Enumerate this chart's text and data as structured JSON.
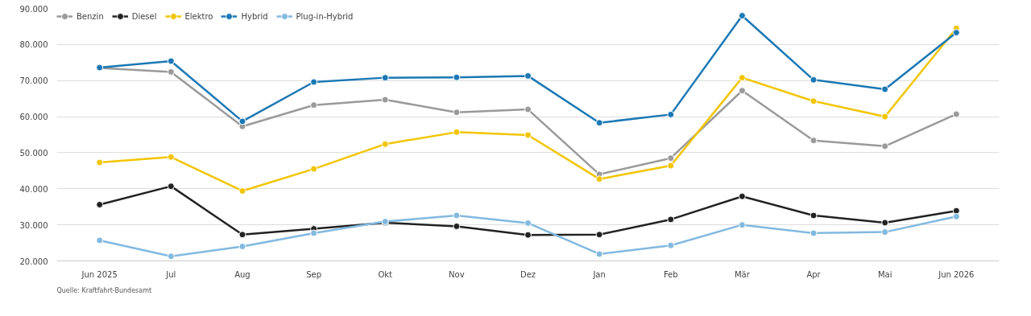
{
  "chart_data": {
    "type": "line",
    "categories": [
      "Jun 2025",
      "Jul",
      "Aug",
      "Sep",
      "Okt",
      "Nov",
      "Dez",
      "Jan",
      "Feb",
      "Mär",
      "Apr",
      "Mai",
      "Jun 2026"
    ],
    "series": [
      {
        "name": "Benzin",
        "color": "#9a9a9a",
        "values": [
          73500,
          72400,
          57300,
          63200,
          64700,
          61200,
          62000,
          44000,
          48500,
          67200,
          53400,
          51800,
          60700
        ]
      },
      {
        "name": "Diesel",
        "color": "#222222",
        "values": [
          35600,
          40700,
          27300,
          28900,
          30600,
          29600,
          27200,
          27300,
          31500,
          37900,
          32600,
          30600,
          33900
        ]
      },
      {
        "name": "Elektro",
        "color": "#f2c500",
        "values": [
          47300,
          48800,
          39400,
          45500,
          52400,
          55700,
          54900,
          42700,
          46400,
          70800,
          64300,
          60000,
          84500
        ]
      },
      {
        "name": "Hybrid",
        "color": "#1b78b4",
        "values": [
          73600,
          75400,
          58700,
          69600,
          70800,
          70900,
          71300,
          58300,
          60600,
          88000,
          70200,
          67600,
          83300
        ]
      },
      {
        "name": "Plug-in-Hybrid",
        "color": "#82b9df",
        "values": [
          25700,
          21300,
          24000,
          27700,
          30900,
          32600,
          30500,
          21900,
          24300,
          30000,
          27700,
          28000,
          32300
        ]
      }
    ],
    "ylim": [
      20000,
      90000
    ],
    "yticks": [
      {
        "value": 20000,
        "label": "20.000"
      },
      {
        "value": 30000,
        "label": "30.000"
      },
      {
        "value": 40000,
        "label": "40.000"
      },
      {
        "value": 50000,
        "label": "50.000"
      },
      {
        "value": 60000,
        "label": "60.000"
      },
      {
        "value": 70000,
        "label": "70.000"
      },
      {
        "value": 80000,
        "label": "80.000"
      },
      {
        "value": 90000,
        "label": "90.000"
      }
    ],
    "grid": "y",
    "legend": "top left",
    "marker": "circle",
    "line_style": "solid",
    "annotations": [
      "Quelle: Kraftfahrt-Bundesamt"
    ]
  }
}
